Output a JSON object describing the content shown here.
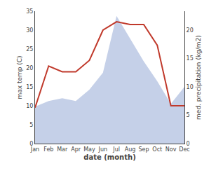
{
  "chart_data": {
    "type": "line",
    "xlabel": "date (month)",
    "ylabel": "max temp (C)",
    "y2label": "med. precipitation (kg/m2)",
    "categories": [
      "Jan",
      "Feb",
      "Mar",
      "Apr",
      "May",
      "Jun",
      "Jul",
      "Aug",
      "Sep",
      "Oct",
      "Nov",
      "Dec"
    ],
    "series": [
      {
        "type": "area",
        "axis": "y2",
        "color": "#c5d0e8",
        "values": [
          6.5,
          7.5,
          8.0,
          7.5,
          9.5,
          12.5,
          22.5,
          18.5,
          14.5,
          11.0,
          7.0,
          10.0
        ]
      },
      {
        "type": "line",
        "color": "#c0392b",
        "values": [
          9.5,
          20.5,
          19.0,
          19.0,
          22.0,
          30.0,
          32.2,
          31.5,
          31.5,
          26.0,
          10.0,
          10.0
        ]
      }
    ],
    "ylim": [
      0,
      35
    ],
    "yticks": [
      0,
      5,
      10,
      15,
      20,
      25,
      30,
      35
    ],
    "y2lim": [
      0,
      23.33
    ],
    "y2ticks": [
      0,
      5,
      10,
      15,
      20
    ],
    "grid": false
  }
}
